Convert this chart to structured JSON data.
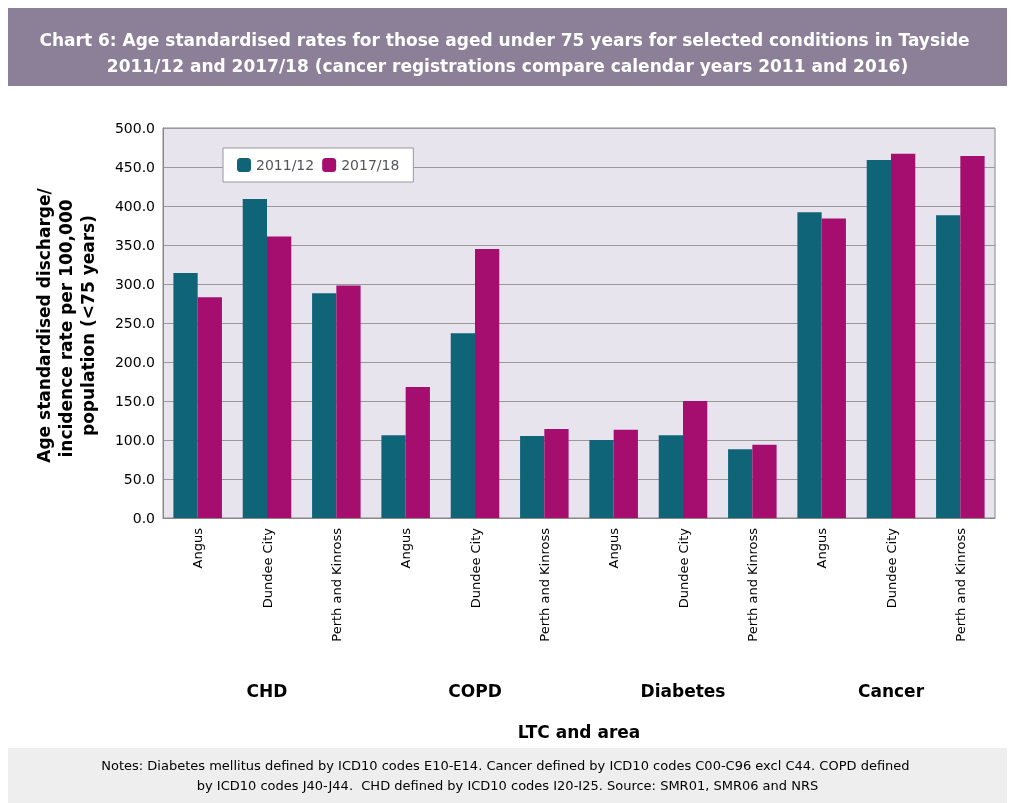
{
  "chart_data": {
    "type": "bar",
    "title": "Chart 6: Age standardised rates for those aged under 75 years for selected conditions in Tayside 2011/12 and 2017/18 (cancer registrations compare calendar years 2011 and 2016)",
    "xlabel": "LTC and area",
    "ylabel": "Age standardised discharge/incidence rate per 100,000 population (<75 years)",
    "categories": [
      "Angus",
      "Dundee City",
      "Perth and Kinross",
      "Angus",
      "Dundee City",
      "Perth and Kinross",
      "Angus",
      "Dundee City",
      "Perth and Kinross",
      "Angus",
      "Dundee City",
      "Perth and Kinross"
    ],
    "series": [
      {
        "name": "2011/12",
        "color": "#0f6478",
        "values": [
          314,
          409,
          288,
          106,
          237,
          105,
          100,
          106,
          88,
          392,
          459,
          388
        ]
      },
      {
        "name": "2017/18",
        "color": "#a50d6e",
        "values": [
          283,
          361,
          298,
          168,
          345,
          114,
          113,
          150,
          94,
          384,
          467,
          464
        ]
      }
    ],
    "ylim": [
      0,
      500
    ],
    "yticks": [
      {
        "value": 0,
        "label": "0.0"
      },
      {
        "value": 50,
        "label": "50.0"
      },
      {
        "value": 100,
        "label": "100.0"
      },
      {
        "value": 150,
        "label": "150.0"
      },
      {
        "value": 200,
        "label": "200.0"
      },
      {
        "value": 250,
        "label": "250.0"
      },
      {
        "value": 300,
        "label": "300.0"
      },
      {
        "value": 350,
        "label": "350.0"
      },
      {
        "value": 400,
        "label": "400.0"
      },
      {
        "value": 450,
        "label": "450.0"
      },
      {
        "value": 500,
        "label": "500.0"
      }
    ],
    "grid": "y",
    "legend": "top left",
    "annotations": [
      "CHD",
      "COPD",
      "Diabetes",
      "Cancer",
      "Notes: Diabetes mellitus defined by ICD10 codes E10-E14. Cancer defined by ICD10 codes C00-C96 excl C44. COPD defined by ICD10 codes J40-J44.  CHD defined by ICD10 codes I20-I25. Source: SMR01, SMR06 and NRS"
    ]
  }
}
